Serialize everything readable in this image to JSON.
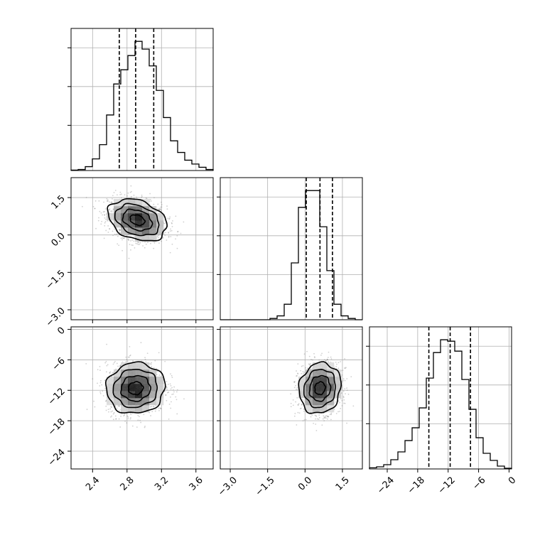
{
  "chart_data": {
    "type": "corner",
    "parameters": [
      {
        "range": [
          2.15,
          3.8
        ],
        "ticks": [
          2.4,
          2.8,
          3.2,
          3.6
        ],
        "tick_labels": [
          "2.4",
          "2.8",
          "3.2",
          "3.6"
        ],
        "quantiles": [
          2.71,
          2.9,
          3.11
        ]
      },
      {
        "range": [
          -3.4,
          2.3
        ],
        "ticks": [
          -3.0,
          -1.5,
          0.0,
          1.5
        ],
        "tick_labels": [
          "−3.0",
          "−1.5",
          "0.0",
          "1.5"
        ],
        "quantiles": [
          0.05,
          0.6,
          1.1
        ]
      },
      {
        "range": [
          -27.5,
          0.5
        ],
        "ticks": [
          -24,
          -18,
          -12,
          -6,
          0
        ],
        "tick_labels": [
          "−24",
          "−18",
          "−12",
          "−6",
          "0"
        ],
        "quantiles": [
          -15.8,
          -11.6,
          -7.6
        ]
      }
    ],
    "histograms": [
      {
        "edges_start": 2.15,
        "bin_width": 0.0825,
        "counts": [
          0.3,
          0.8,
          3,
          9,
          20,
          43,
          67,
          78,
          89,
          100,
          94,
          81,
          62,
          41,
          23,
          14,
          8,
          5,
          2.5,
          0.8
        ]
      },
      {
        "edges_start": -3.4,
        "bin_width": 0.285,
        "counts": [
          0,
          0,
          0,
          0,
          0,
          0,
          0,
          1,
          3,
          12,
          44,
          87,
          100,
          100,
          72,
          38,
          12,
          3,
          1,
          0
        ]
      },
      {
        "edges_start": -27.5,
        "bin_width": 1.4,
        "counts": [
          0.8,
          1.5,
          3,
          6.5,
          12,
          20,
          29,
          43,
          64,
          82,
          91,
          90,
          83,
          63,
          42,
          22,
          11,
          6,
          2,
          0.5
        ]
      }
    ],
    "joint": [
      {
        "row": 1,
        "col": 0,
        "mean": [
          2.92,
          0.6
        ],
        "sd": [
          0.17,
          0.42
        ],
        "rho": -0.3
      },
      {
        "row": 2,
        "col": 0,
        "mean": [
          2.9,
          -11.6
        ],
        "sd": [
          0.17,
          2.5
        ],
        "rho": 0.05
      },
      {
        "row": 2,
        "col": 1,
        "mean": [
          0.6,
          -11.6
        ],
        "sd": [
          0.42,
          2.5
        ],
        "rho": 0.1
      }
    ],
    "contour_levels_sigma": [
      0.5,
      1.0,
      1.5,
      2.0
    ],
    "grid": true
  }
}
